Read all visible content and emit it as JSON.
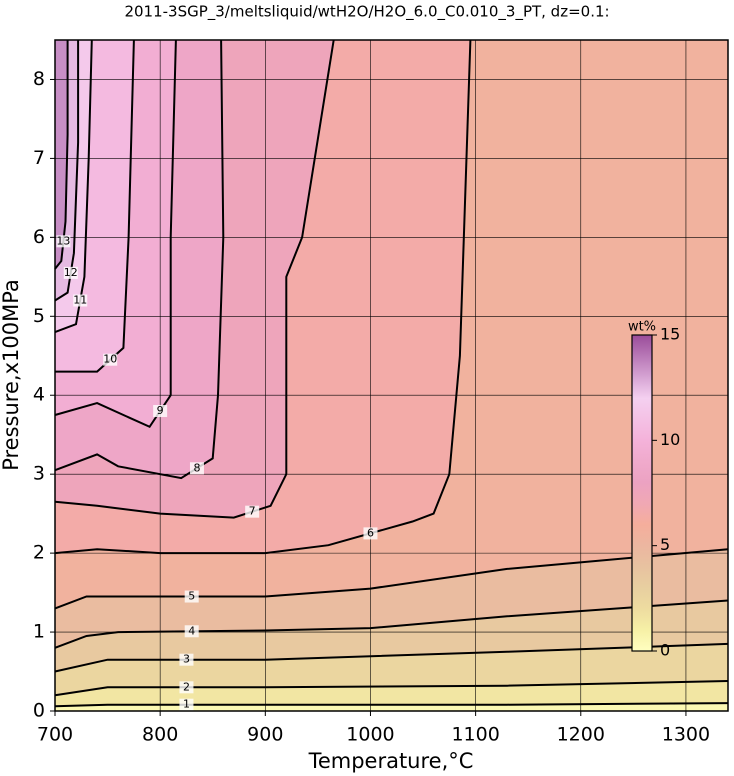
{
  "chart_data": {
    "type": "contour",
    "title": "2011-3SGP_3/meltsliquid/wtH2O/H2O_6.0_C0.010_3_PT, dz=0.1:",
    "x_label": "Temperature,°C",
    "y_label": "Pressure,x100MPa",
    "xlim": [
      700,
      1340
    ],
    "ylim": [
      0,
      8.5
    ],
    "xticks": [
      700,
      800,
      900,
      1000,
      1100,
      1200,
      1300
    ],
    "yticks": [
      0,
      1,
      2,
      3,
      4,
      5,
      6,
      7,
      8
    ],
    "grid": true,
    "colorbar": {
      "title": "wt%",
      "clim": [
        0,
        15
      ],
      "ticks": [
        0,
        5,
        10,
        15
      ]
    },
    "colormap": [
      {
        "value": 0,
        "color": "#ffffc0"
      },
      {
        "value": 1,
        "color": "#f6f0a6"
      },
      {
        "value": 2,
        "color": "#eedca0"
      },
      {
        "value": 3,
        "color": "#e8cfa0"
      },
      {
        "value": 4,
        "color": "#e8c2a0"
      },
      {
        "value": 5,
        "color": "#ecb6a0"
      },
      {
        "value": 6,
        "color": "#f5ae9c"
      },
      {
        "value": 7,
        "color": "#f0a8b4"
      },
      {
        "value": 8,
        "color": "#eca2c2"
      },
      {
        "value": 9,
        "color": "#f0aacc"
      },
      {
        "value": 10,
        "color": "#f4b2da"
      },
      {
        "value": 12,
        "color": "#f4d0f0"
      },
      {
        "value": 15,
        "color": "#9a4c9a"
      }
    ],
    "contours": [
      {
        "level": 1,
        "x": [
          700,
          750,
          900,
          1130,
          1340
        ],
        "y": [
          0.06,
          0.08,
          0.08,
          0.08,
          0.1
        ]
      },
      {
        "level": 2,
        "x": [
          700,
          750,
          900,
          1130,
          1340
        ],
        "y": [
          0.2,
          0.3,
          0.3,
          0.32,
          0.38
        ]
      },
      {
        "level": 3,
        "x": [
          700,
          750,
          900,
          1130,
          1340
        ],
        "y": [
          0.5,
          0.65,
          0.65,
          0.75,
          0.85
        ]
      },
      {
        "level": 4,
        "x": [
          700,
          730,
          760,
          900,
          1000,
          1130,
          1340
        ],
        "y": [
          0.8,
          0.95,
          1.0,
          1.02,
          1.05,
          1.2,
          1.4
        ]
      },
      {
        "level": 5,
        "x": [
          700,
          730,
          760,
          900,
          1000,
          1130,
          1340
        ],
        "y": [
          1.3,
          1.45,
          1.45,
          1.45,
          1.55,
          1.8,
          2.05
        ]
      },
      {
        "level": 6,
        "x": [
          700,
          740,
          800,
          900,
          960,
          1040,
          1060,
          1075,
          1085,
          1095
        ],
        "y": [
          2.0,
          2.05,
          2.0,
          2.0,
          2.1,
          2.4,
          2.5,
          3.0,
          4.5,
          8.5
        ]
      },
      {
        "level": 7,
        "x": [
          700,
          740,
          800,
          870,
          905,
          920,
          920,
          935,
          965
        ],
        "y": [
          2.65,
          2.6,
          2.5,
          2.45,
          2.6,
          3.0,
          5.5,
          6.0,
          8.5
        ]
      },
      {
        "level": 8,
        "x": [
          700,
          740,
          760,
          820,
          850,
          855,
          860,
          858
        ],
        "y": [
          3.05,
          3.25,
          3.1,
          2.95,
          3.2,
          4.0,
          6.0,
          8.5
        ]
      },
      {
        "level": 9,
        "x": [
          700,
          740,
          790,
          810,
          810,
          815
        ],
        "y": [
          3.75,
          3.9,
          3.6,
          4.0,
          6.0,
          8.5
        ]
      },
      {
        "level": 10,
        "x": [
          700,
          740,
          765,
          770,
          775
        ],
        "y": [
          4.3,
          4.3,
          4.6,
          6.0,
          8.5
        ]
      },
      {
        "level": 11,
        "x": [
          700,
          720,
          728,
          732,
          735
        ],
        "y": [
          4.8,
          4.9,
          5.5,
          7.0,
          8.5
        ]
      },
      {
        "level": 12,
        "x": [
          700,
          712,
          718,
          722,
          722
        ],
        "y": [
          5.2,
          5.3,
          5.8,
          7.2,
          8.5
        ]
      },
      {
        "level": 13,
        "x": [
          700,
          706,
          710,
          712,
          712
        ],
        "y": [
          5.6,
          5.7,
          6.2,
          7.3,
          8.5
        ]
      }
    ]
  }
}
